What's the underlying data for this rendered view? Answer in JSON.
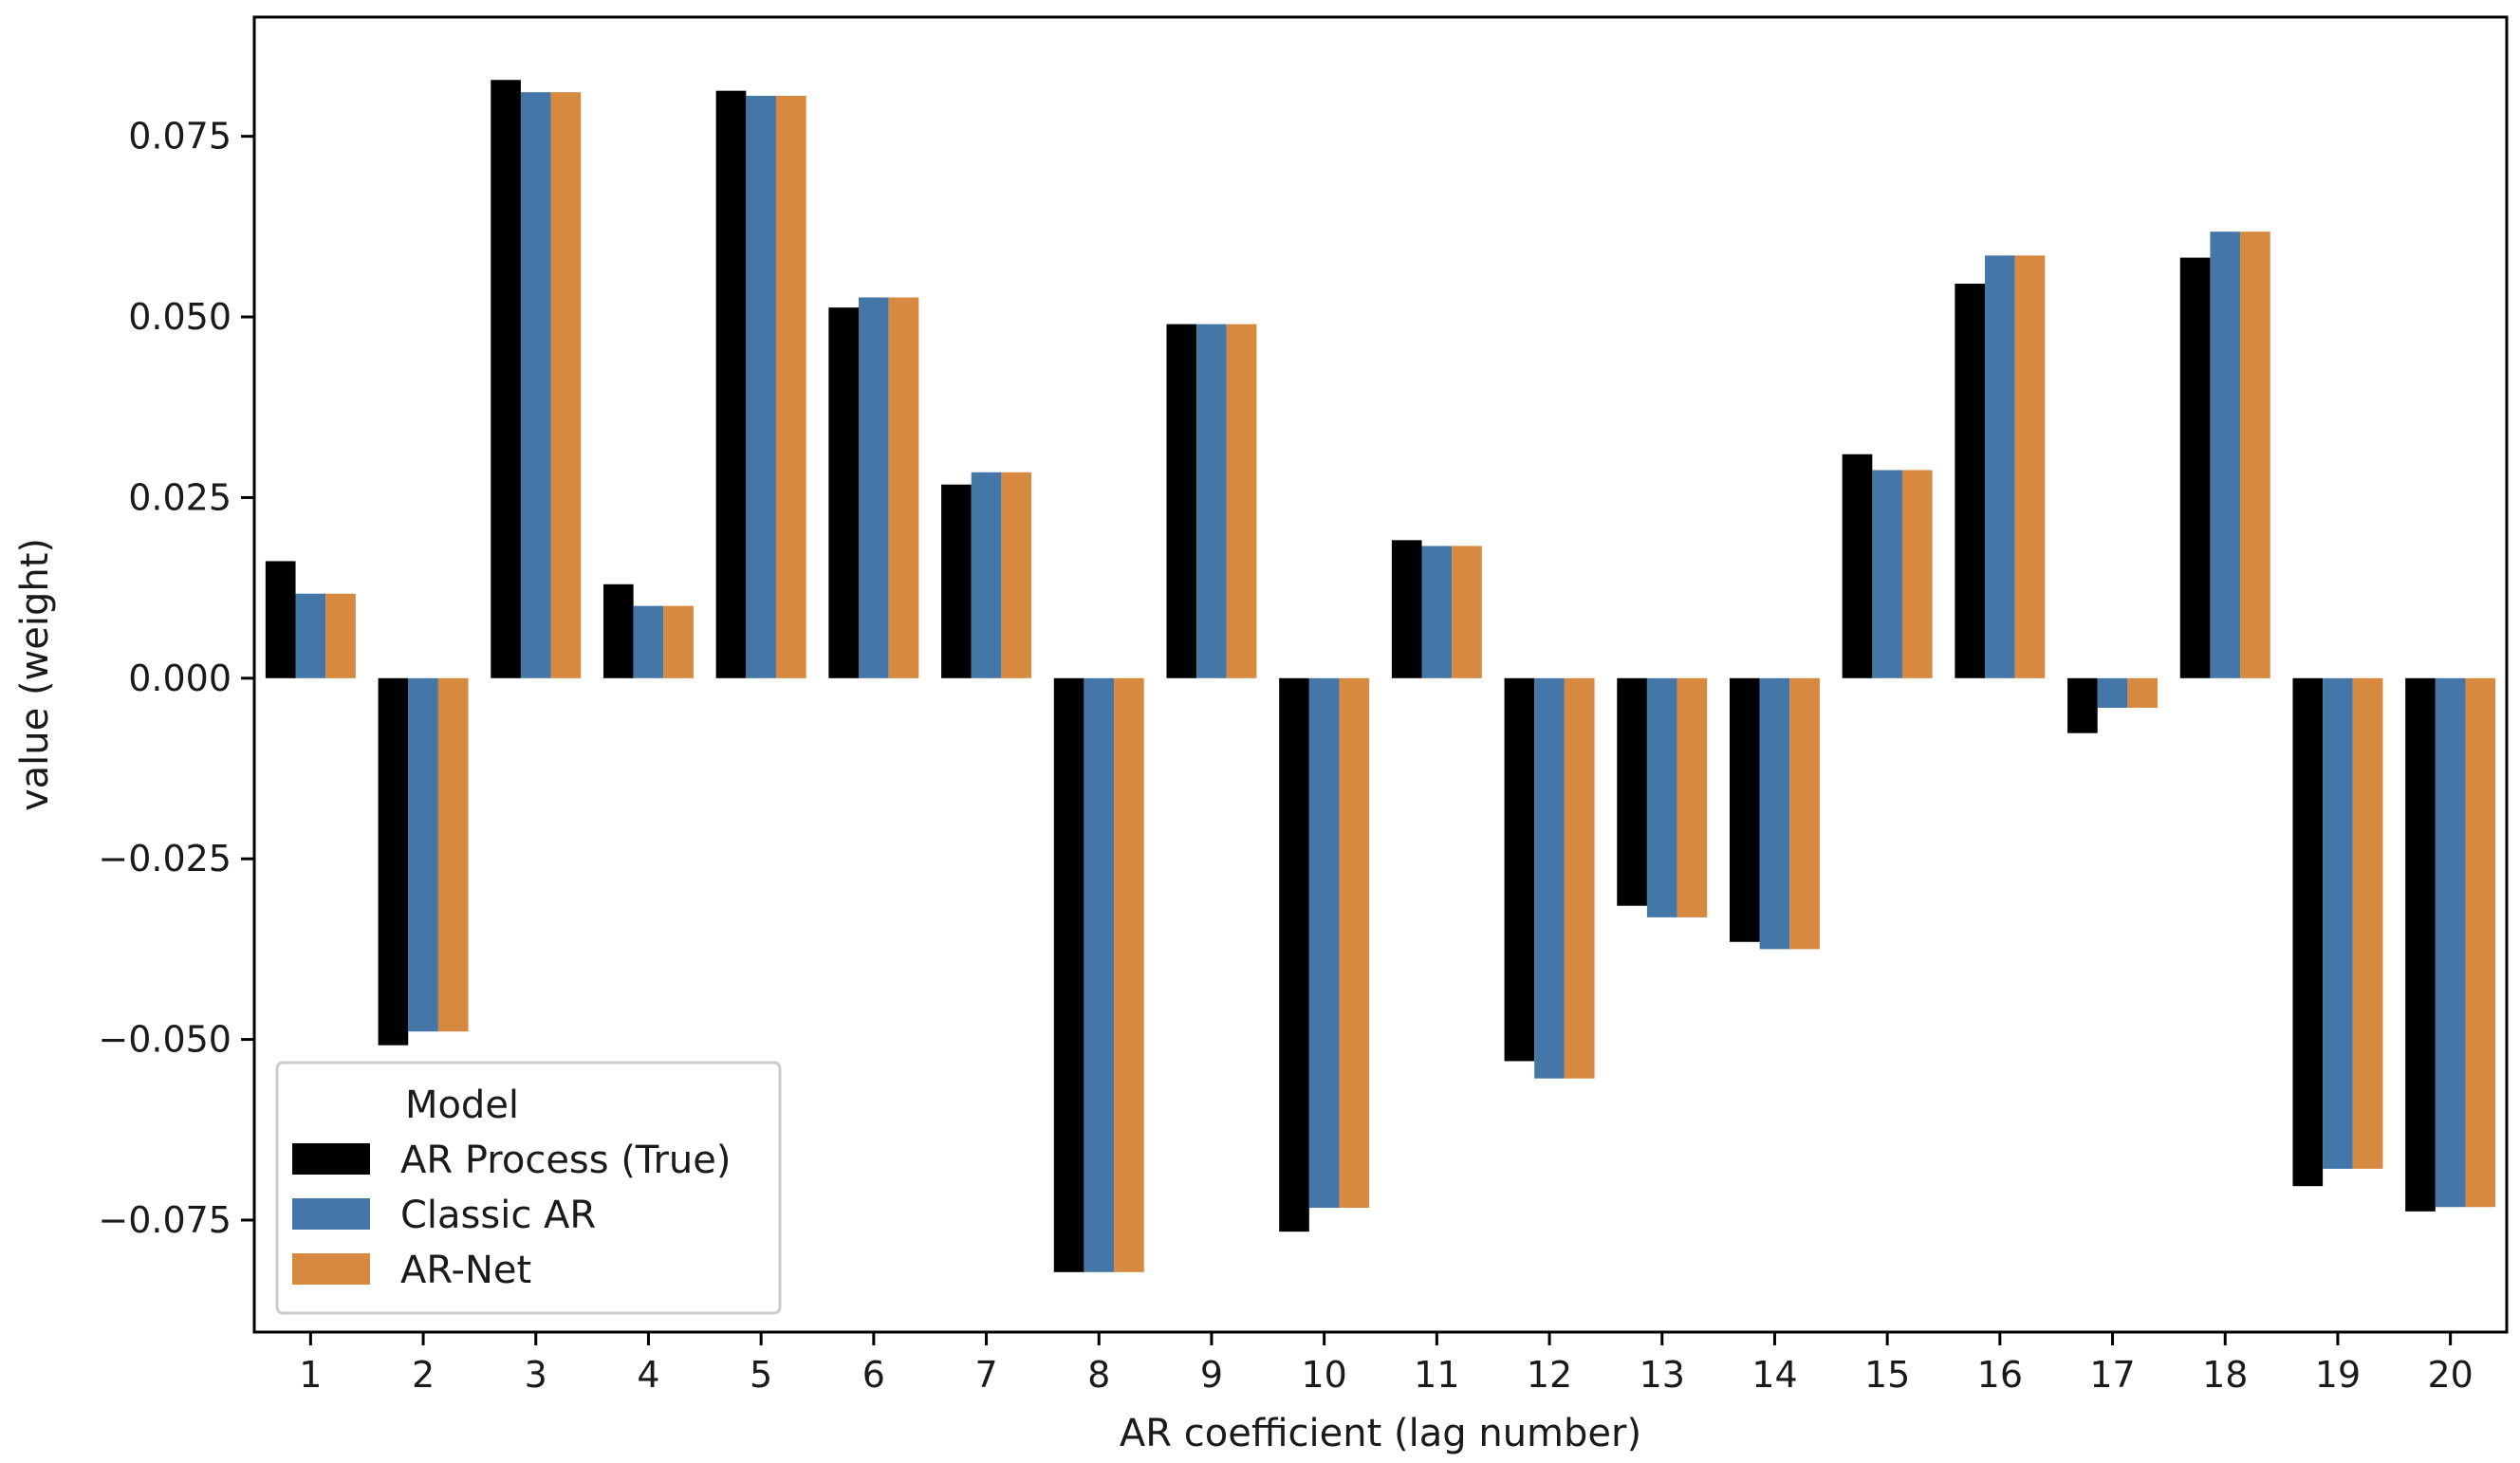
{
  "chart_data": {
    "type": "bar",
    "title": "",
    "xlabel": "AR coefficient (lag number)",
    "ylabel": "value (weight)",
    "ylim": [
      -0.0905,
      0.0915
    ],
    "yticks": [
      -0.075,
      -0.05,
      -0.025,
      0.0,
      0.025,
      0.05,
      0.075
    ],
    "ytick_labels": [
      "−0.075",
      "−0.050",
      "−0.025",
      "0.000",
      "0.025",
      "0.050",
      "0.075"
    ],
    "categories": [
      "1",
      "2",
      "3",
      "4",
      "5",
      "6",
      "7",
      "8",
      "9",
      "10",
      "11",
      "12",
      "13",
      "14",
      "15",
      "16",
      "17",
      "18",
      "19",
      "20"
    ],
    "grid": false,
    "legend": {
      "title": "Model",
      "position": "lower-left"
    },
    "series": [
      {
        "name": "AR Process (True)",
        "color": "#000000",
        "values": [
          0.0162,
          -0.0508,
          0.0828,
          0.013,
          0.0813,
          0.0513,
          0.0268,
          -0.0822,
          0.049,
          -0.0766,
          0.0191,
          -0.053,
          -0.0315,
          -0.0365,
          0.031,
          0.0546,
          -0.0076,
          0.0582,
          -0.0703,
          -0.0738
        ]
      },
      {
        "name": "Classic AR",
        "color": "#4477a8",
        "values": [
          0.0117,
          -0.0489,
          0.0811,
          0.01,
          0.0806,
          0.0527,
          0.0285,
          -0.0822,
          0.049,
          -0.0733,
          0.0183,
          -0.0554,
          -0.0331,
          -0.0375,
          0.0288,
          0.0585,
          -0.0041,
          0.0618,
          -0.0679,
          -0.0732
        ]
      },
      {
        "name": "AR-Net",
        "color": "#d6893f",
        "values": [
          0.0117,
          -0.0489,
          0.0811,
          0.01,
          0.0806,
          0.0527,
          0.0285,
          -0.0822,
          0.049,
          -0.0733,
          0.0183,
          -0.0554,
          -0.0331,
          -0.0375,
          0.0288,
          0.0585,
          -0.0041,
          0.0618,
          -0.0679,
          -0.0732
        ]
      }
    ]
  }
}
